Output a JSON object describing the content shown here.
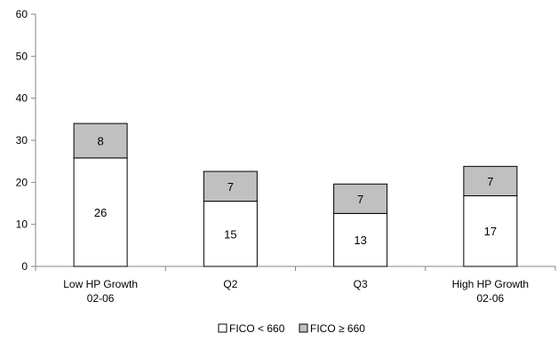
{
  "chart_data": {
    "type": "bar",
    "stacked": true,
    "categories": [
      [
        "Low HP Growth",
        "02-06"
      ],
      [
        "Q2"
      ],
      [
        "Q3"
      ],
      [
        "High HP Growth",
        "02-06"
      ]
    ],
    "series": [
      {
        "name": "FICO < 660",
        "values": [
          26,
          15,
          13,
          17
        ],
        "color": "#ffffff"
      },
      {
        "name": "FICO ≥ 660",
        "values": [
          8,
          7,
          7,
          7
        ],
        "color": "#c0c0c0"
      }
    ],
    "bar_totals": [
      34.0,
      22.6,
      19.6,
      23.8
    ],
    "bar_bottoms": [
      25.8,
      15.5,
      12.6,
      16.8
    ],
    "data_labels": [
      [
        26,
        8
      ],
      [
        15,
        7
      ],
      [
        13,
        7
      ],
      [
        17,
        7
      ]
    ],
    "ylim": [
      0,
      60
    ],
    "yticks": [
      0,
      10,
      20,
      30,
      40,
      50,
      60
    ],
    "title": "",
    "xlabel": "",
    "ylabel": "",
    "grid": false,
    "legend_position": "bottom-center",
    "colors": {
      "axis": "#868686",
      "bar_border": "#000000",
      "text": "#000000"
    }
  }
}
